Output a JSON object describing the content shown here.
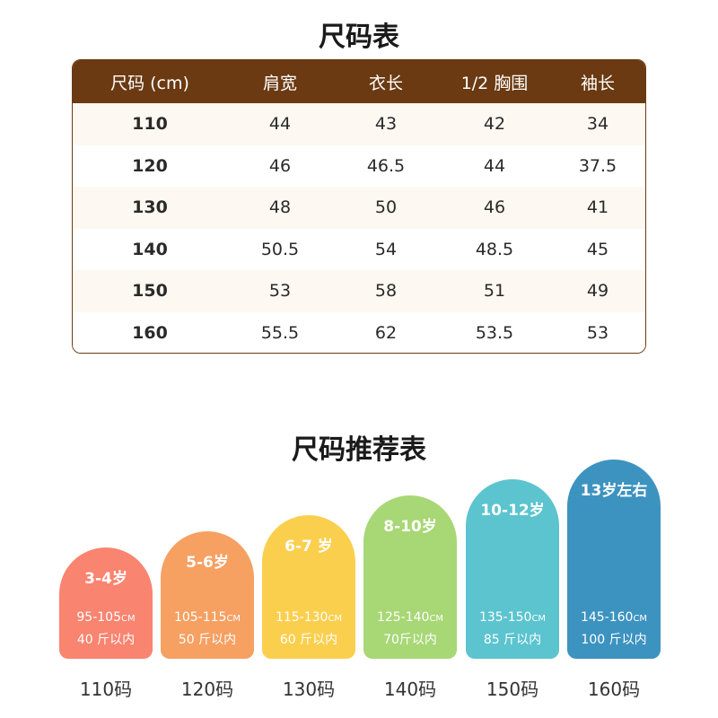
{
  "size_table": {
    "title": "尺码表",
    "headers": [
      "尺码 (cm)",
      "肩宽",
      "衣长",
      "1/2 胸围",
      "袖长"
    ],
    "rows": [
      [
        "110",
        "44",
        "43",
        "42",
        "34"
      ],
      [
        "120",
        "46",
        "46.5",
        "44",
        "37.5"
      ],
      [
        "130",
        "48",
        "50",
        "46",
        "41"
      ],
      [
        "140",
        "50.5",
        "54",
        "48.5",
        "45"
      ],
      [
        "150",
        "53",
        "58",
        "51",
        "49"
      ],
      [
        "160",
        "55.5",
        "62",
        "53.5",
        "53"
      ]
    ]
  },
  "recommendation": {
    "title": "尺码推荐表",
    "height_unit": "CM",
    "cards": [
      {
        "age": "3-4岁",
        "height": "95-105",
        "weight": "40 斤以内",
        "size": "110码",
        "color": "#f98470"
      },
      {
        "age": "5-6岁",
        "height": "105-115",
        "weight": "50 斤以内",
        "size": "120码",
        "color": "#f6a062"
      },
      {
        "age": "6-7 岁",
        "height": "115-130",
        "weight": "60 斤以内",
        "size": "130码",
        "color": "#fbcf4e"
      },
      {
        "age": "8-10岁",
        "height": "125-140",
        "weight": "70斤以内",
        "size": "140码",
        "color": "#a8d776"
      },
      {
        "age": "10-12岁",
        "height": "135-150",
        "weight": "85 斤以内",
        "size": "150码",
        "color": "#5bc4cf"
      },
      {
        "age": "13岁左右",
        "height": "145-160",
        "weight": "100 斤以内",
        "size": "160码",
        "color": "#3d93c0"
      }
    ]
  }
}
